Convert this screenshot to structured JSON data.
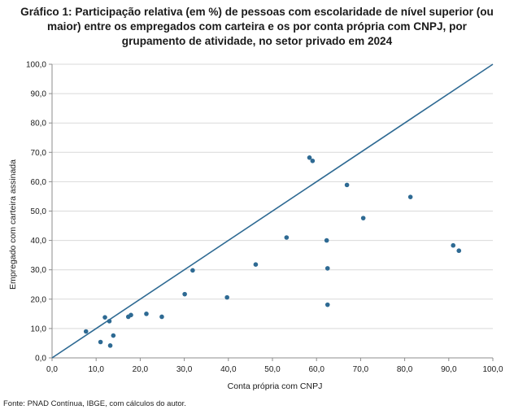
{
  "title": {
    "lines": [
      "Gráfico 1: Participação relativa (em %) de pessoas com escolaridade de nível superior (ou",
      "maior) entre os empregados com carteira e os por conta própria com CNPJ, por",
      "grupamento de atividade, no setor privado em 2024"
    ]
  },
  "source": "Fonte: PNAD Contínua, IBGE, com cálculos do autor.",
  "colors": {
    "point": "#2e6a93",
    "line": "#2e6a93",
    "grid": "#d9d9d9",
    "axis": "#8c8c8c"
  },
  "chart_data": {
    "type": "scatter",
    "xlabel": "Conta  própria com CNPJ",
    "ylabel": "Empregado com carteira assinada",
    "xlim": [
      0,
      100
    ],
    "ylim": [
      0,
      100
    ],
    "xticks": [
      "0,0",
      "10,0",
      "20,0",
      "30,0",
      "40,0",
      "50,0",
      "60,0",
      "70,0",
      "80,0",
      "90,0",
      "100,0"
    ],
    "yticks": [
      "0,0",
      "10,0",
      "20,0",
      "30,0",
      "40,0",
      "50,0",
      "60,0",
      "70,0",
      "80,0",
      "90,0",
      "100,0"
    ],
    "grid": "horizontal",
    "reference_line": [
      [
        0,
        0
      ],
      [
        100,
        100
      ]
    ],
    "points": [
      {
        "x": 7.7,
        "y": 9.0
      },
      {
        "x": 11.0,
        "y": 5.4
      },
      {
        "x": 12.0,
        "y": 13.8
      },
      {
        "x": 13.0,
        "y": 12.5
      },
      {
        "x": 13.2,
        "y": 4.2
      },
      {
        "x": 13.9,
        "y": 7.6
      },
      {
        "x": 17.3,
        "y": 14.0
      },
      {
        "x": 17.9,
        "y": 14.6
      },
      {
        "x": 21.4,
        "y": 15.0
      },
      {
        "x": 24.9,
        "y": 14.0
      },
      {
        "x": 30.1,
        "y": 21.7
      },
      {
        "x": 31.9,
        "y": 29.8
      },
      {
        "x": 39.7,
        "y": 20.6
      },
      {
        "x": 46.2,
        "y": 31.8
      },
      {
        "x": 53.2,
        "y": 41.0
      },
      {
        "x": 58.4,
        "y": 68.2
      },
      {
        "x": 59.1,
        "y": 67.1
      },
      {
        "x": 62.3,
        "y": 40.0
      },
      {
        "x": 62.5,
        "y": 30.5
      },
      {
        "x": 62.5,
        "y": 18.1
      },
      {
        "x": 66.9,
        "y": 58.9
      },
      {
        "x": 70.6,
        "y": 47.6
      },
      {
        "x": 81.3,
        "y": 54.8
      },
      {
        "x": 91.0,
        "y": 38.3
      },
      {
        "x": 92.3,
        "y": 36.5
      }
    ]
  }
}
